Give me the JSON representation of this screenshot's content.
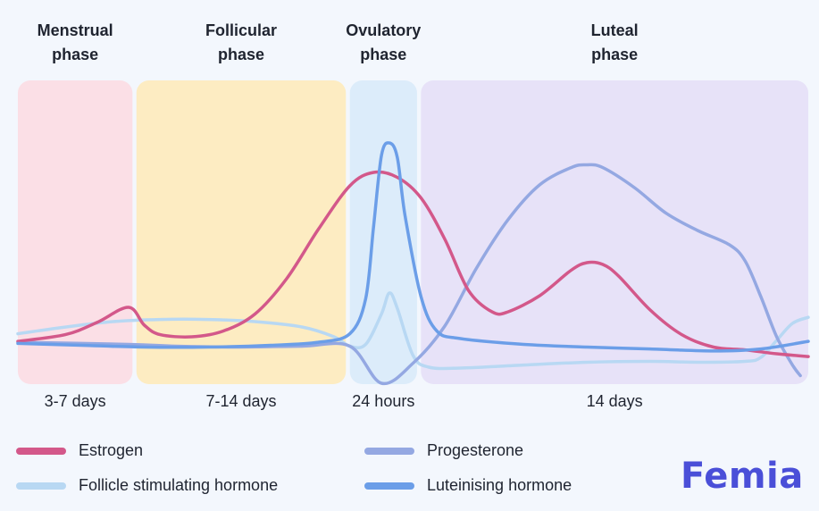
{
  "chart_data": {
    "type": "line",
    "x_range": [
      0,
      100
    ],
    "y_range": [
      0,
      100
    ],
    "grid": false,
    "legend_position": "bottom",
    "phases": [
      {
        "name": [
          "Menstrual",
          "phase"
        ],
        "duration": "3-7 days",
        "from": 0,
        "to": 14.5,
        "color": "#fbdfe6"
      },
      {
        "name": [
          "Follicular",
          "phase"
        ],
        "duration": "7-14 days",
        "from": 15,
        "to": 41.5,
        "color": "#fdecc2"
      },
      {
        "name": [
          "Ovulatory",
          "phase"
        ],
        "duration": "24 hours",
        "from": 42,
        "to": 50.5,
        "color": "#dcecfa"
      },
      {
        "name": [
          "Luteal",
          "phase"
        ],
        "duration": "14 days",
        "from": 51,
        "to": 100,
        "color": "#e7e2f8"
      }
    ],
    "series": [
      {
        "name": "Estrogen",
        "color": "#d3588a",
        "points": [
          [
            0,
            14.1
          ],
          [
            6,
            16.3
          ],
          [
            10,
            20.3
          ],
          [
            14,
            25.3
          ],
          [
            16,
            19.4
          ],
          [
            18,
            16.3
          ],
          [
            22,
            15.6
          ],
          [
            26,
            17.5
          ],
          [
            30,
            23.1
          ],
          [
            34,
            34.7
          ],
          [
            38,
            50.9
          ],
          [
            42,
            65.3
          ],
          [
            45,
            69.7
          ],
          [
            48,
            68.1
          ],
          [
            51,
            61.3
          ],
          [
            54,
            47.8
          ],
          [
            57,
            30.9
          ],
          [
            60,
            23.8
          ],
          [
            62,
            23.8
          ],
          [
            66,
            29.1
          ],
          [
            70,
            37.5
          ],
          [
            72,
            40
          ],
          [
            74,
            39.4
          ],
          [
            76,
            35.6
          ],
          [
            80,
            24.4
          ],
          [
            84,
            16.3
          ],
          [
            88,
            12.2
          ],
          [
            92,
            11.3
          ],
          [
            96,
            10
          ],
          [
            100,
            9.1
          ]
        ]
      },
      {
        "name": "Follicle stimulating hormone",
        "color": "#b8d8f3",
        "points": [
          [
            0,
            16.6
          ],
          [
            6,
            18.8
          ],
          [
            12,
            20.6
          ],
          [
            18,
            21.3
          ],
          [
            24,
            21.3
          ],
          [
            30,
            20.6
          ],
          [
            36,
            18.8
          ],
          [
            40,
            15.6
          ],
          [
            42,
            12.5
          ],
          [
            44,
            13.1
          ],
          [
            46,
            23.1
          ],
          [
            47,
            30
          ],
          [
            48,
            25
          ],
          [
            50,
            9.4
          ],
          [
            52,
            5.6
          ],
          [
            56,
            5.3
          ],
          [
            64,
            6.3
          ],
          [
            72,
            7.2
          ],
          [
            80,
            7.5
          ],
          [
            86,
            7.2
          ],
          [
            92,
            7.5
          ],
          [
            94,
            8.8
          ],
          [
            96,
            14.4
          ],
          [
            98,
            20
          ],
          [
            100,
            22
          ]
        ]
      },
      {
        "name": "Progesterone",
        "color": "#94a8e2",
        "points": [
          [
            0,
            13.8
          ],
          [
            14,
            13.1
          ],
          [
            20,
            12.5
          ],
          [
            28,
            12.2
          ],
          [
            36,
            12.5
          ],
          [
            42,
            12.5
          ],
          [
            46,
            0.3
          ],
          [
            50,
            6.9
          ],
          [
            54,
            19.1
          ],
          [
            58,
            38.1
          ],
          [
            62,
            54.1
          ],
          [
            66,
            65.6
          ],
          [
            70,
            71.3
          ],
          [
            72,
            72.2
          ],
          [
            74,
            71.3
          ],
          [
            78,
            64.7
          ],
          [
            82,
            56.3
          ],
          [
            86,
            50.6
          ],
          [
            90,
            45.9
          ],
          [
            92,
            40.6
          ],
          [
            94,
            28.8
          ],
          [
            96,
            15.6
          ],
          [
            98,
            6.3
          ],
          [
            99,
            2.8
          ]
        ]
      },
      {
        "name": "Luteinising hormone",
        "color": "#6b9ee8",
        "points": [
          [
            0,
            13.4
          ],
          [
            8,
            12.8
          ],
          [
            16,
            12.2
          ],
          [
            24,
            12.2
          ],
          [
            32,
            12.8
          ],
          [
            38,
            13.8
          ],
          [
            42,
            16.6
          ],
          [
            44,
            28.1
          ],
          [
            45,
            51.9
          ],
          [
            46,
            75.3
          ],
          [
            47,
            79.4
          ],
          [
            48,
            74.7
          ],
          [
            49,
            55.3
          ],
          [
            51,
            28.8
          ],
          [
            53,
            17.5
          ],
          [
            56,
            15
          ],
          [
            64,
            13.1
          ],
          [
            72,
            12.2
          ],
          [
            80,
            11.6
          ],
          [
            88,
            10.9
          ],
          [
            94,
            11.6
          ],
          [
            100,
            14.1
          ]
        ]
      }
    ],
    "legend": [
      {
        "label": "Estrogen",
        "color": "#d3588a"
      },
      {
        "label": "Progesterone",
        "color": "#94a8e2"
      },
      {
        "label": "Follicle stimulating hormone",
        "color": "#b8d8f3"
      },
      {
        "label": "Luteinising hormone",
        "color": "#6b9ee8"
      }
    ]
  },
  "brand": {
    "logo": "Femia",
    "color": "#4a4fd8"
  }
}
